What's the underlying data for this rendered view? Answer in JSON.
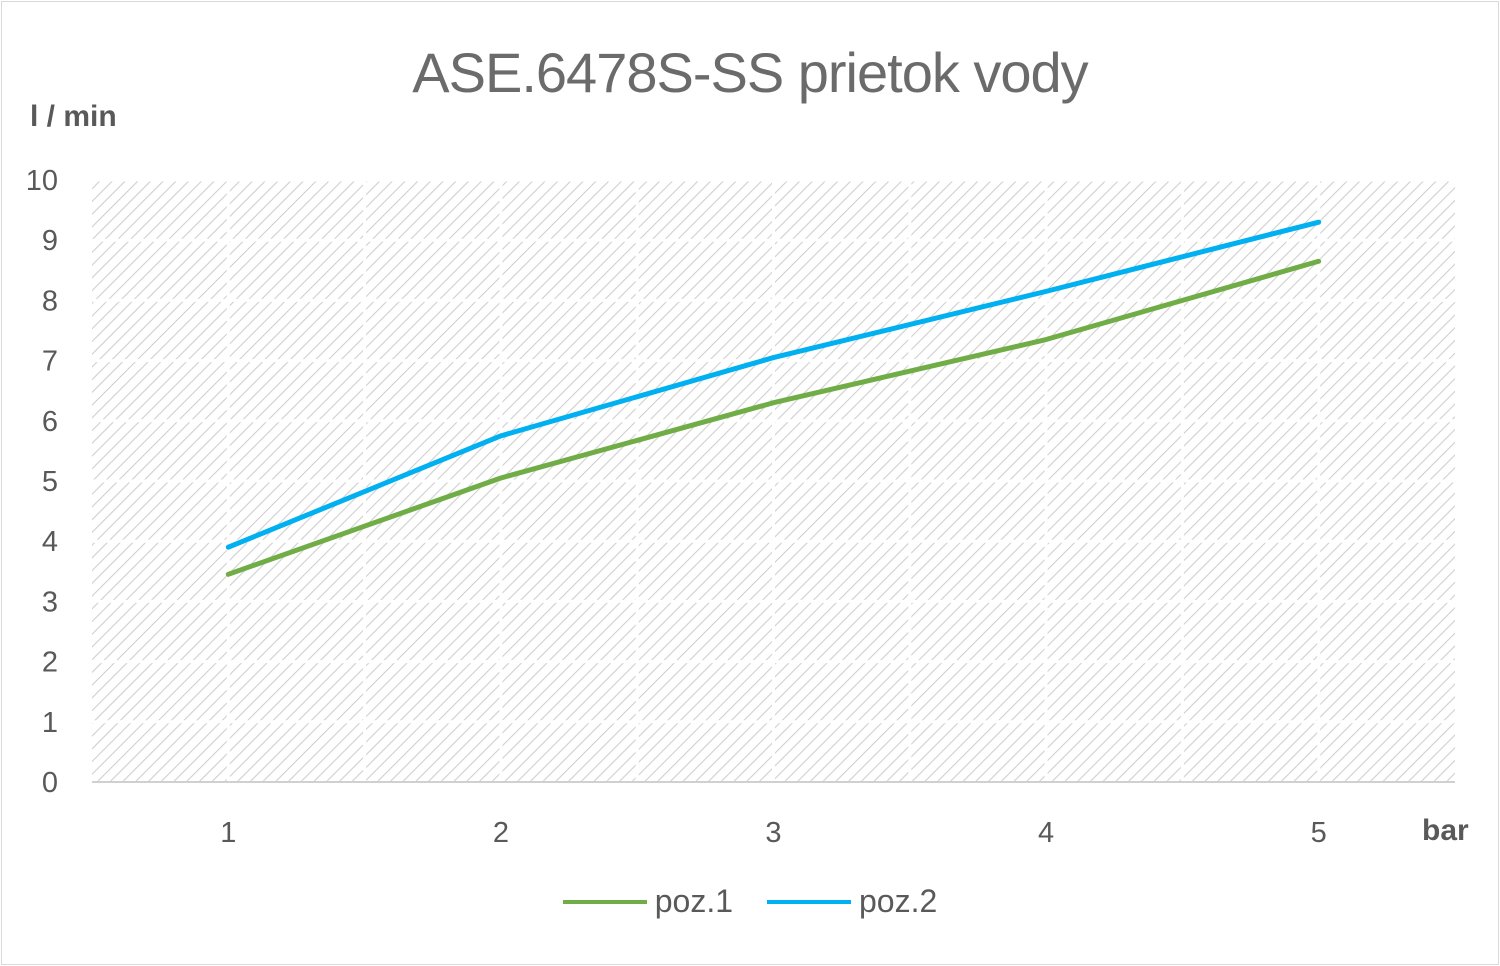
{
  "chart_data": {
    "type": "line",
    "title": "ASE.6478S-SS  prietok vody",
    "ylabel": "l / min",
    "xlabel": "bar",
    "categories": [
      "1",
      "2",
      "3",
      "4",
      "5"
    ],
    "yticks": [
      "0",
      "1",
      "2",
      "3",
      "4",
      "5",
      "6",
      "7",
      "8",
      "9",
      "10"
    ],
    "ylim": [
      0,
      10
    ],
    "grid": true,
    "legend_position": "bottom",
    "series": [
      {
        "name": "poz.1",
        "color": "#70ad47",
        "values": [
          3.45,
          5.05,
          6.3,
          7.35,
          8.65
        ]
      },
      {
        "name": "poz.2",
        "color": "#00b0f0",
        "values": [
          3.9,
          5.75,
          7.05,
          8.15,
          9.3
        ]
      }
    ]
  }
}
